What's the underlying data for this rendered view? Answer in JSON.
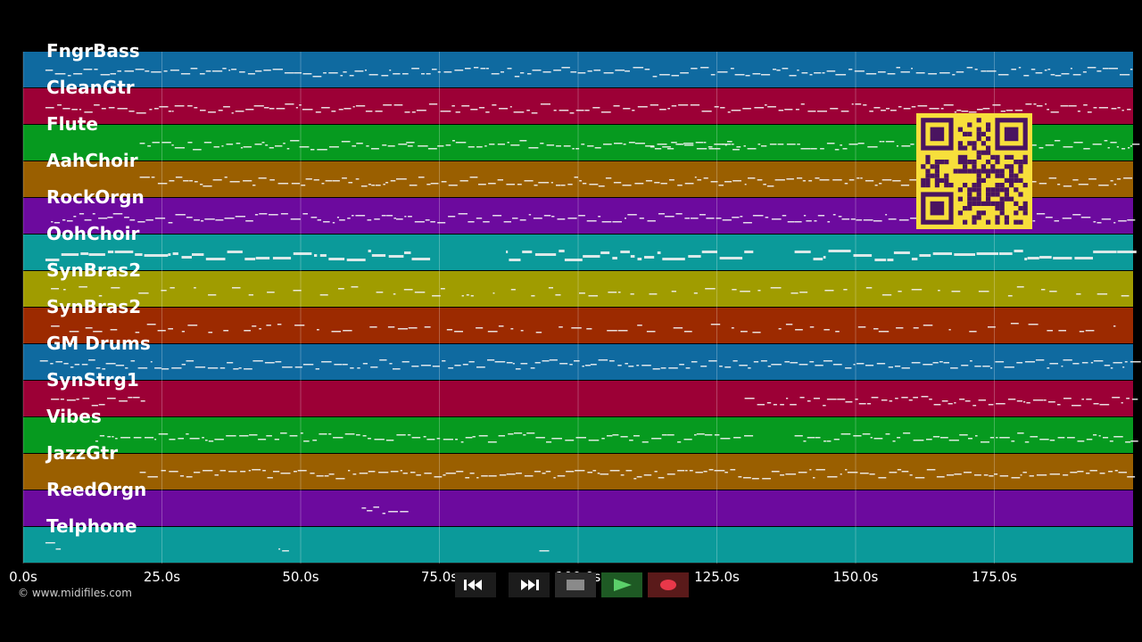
{
  "tracks": [
    {
      "name": "FngrBass",
      "color": "#0f6aa0"
    },
    {
      "name": "CleanGtr",
      "color": "#9c0036"
    },
    {
      "name": "Flute",
      "color": "#069a1f"
    },
    {
      "name": "AahChoir",
      "color": "#9a5f00"
    },
    {
      "name": "RockOrgn",
      "color": "#6c0a9e"
    },
    {
      "name": "OohChoir",
      "color": "#0b9a9a"
    },
    {
      "name": "SynBras2",
      "color": "#a09c00"
    },
    {
      "name": "SynBras2",
      "color": "#9c2a00"
    },
    {
      "name": "GM Drums",
      "color": "#0f6aa0"
    },
    {
      "name": "SynStrg1",
      "color": "#9c0036"
    },
    {
      "name": "Vibes",
      "color": "#069a1f"
    },
    {
      "name": "JazzGtr",
      "color": "#9a5f00"
    },
    {
      "name": "ReedOrgn",
      "color": "#6c0a9e"
    },
    {
      "name": "Telphone",
      "color": "#0b9a9a"
    }
  ],
  "timeline": {
    "max_seconds": 200,
    "ticks": [
      "0.0s",
      "25.0s",
      "50.0s",
      "75.0s",
      "100.0s",
      "125.0s",
      "150.0s",
      "175.0s"
    ]
  },
  "copyright": "© www.midifiles.com",
  "transport": {
    "rewind_icon": "rewind-icon",
    "fast_forward_icon": "fast-forward-icon",
    "stop_icon": "stop-icon",
    "play_icon": "play-icon",
    "record_icon": "record-icon"
  },
  "qr_icon": "qr-code-icon"
}
